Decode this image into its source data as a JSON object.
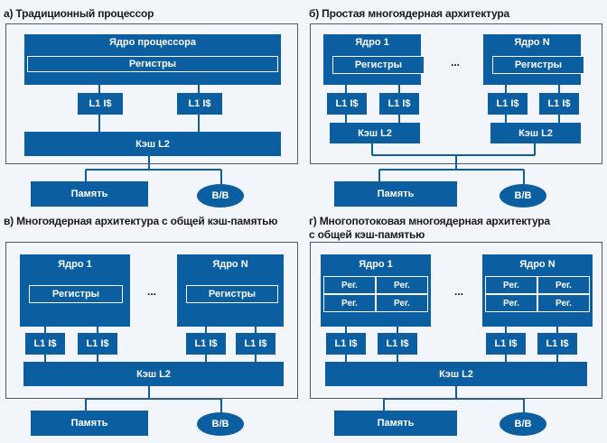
{
  "colors": {
    "block": "#0b5fa0",
    "background": "#f2f6fa",
    "panel": "#e9eef3",
    "wire": "#0b5fa0"
  },
  "a": {
    "title": "а) Традиционный процессор",
    "core_label": "Ядро процессора",
    "registers": "Регистры",
    "l1_left": "L1 I$",
    "l1_right": "L1 I$",
    "cache_l2": "Кэш L2",
    "memory": "Память",
    "io": "В/В"
  },
  "b": {
    "title": "б) Простая многоядерная архитектура",
    "core1_label": "Ядро 1",
    "coreN_label": "Ядро N",
    "registers1": "Регистры",
    "registersN": "Регистры",
    "l1": [
      "L1 I$",
      "L1 I$",
      "L1 I$",
      "L1 I$"
    ],
    "cache1": "Кэш L2",
    "cacheN": "Кэш L2",
    "dots": "...",
    "memory": "Память",
    "io": "В/В"
  },
  "c": {
    "title": "в) Многоядерная архитектура с общей кэш-памятью",
    "core1_label": "Ядро 1",
    "coreN_label": "Ядро N",
    "registers1": "Регистры",
    "registersN": "Регистры",
    "l1": [
      "L1 I$",
      "L1 I$",
      "L1 I$",
      "L1 I$"
    ],
    "cache_l2": "Кэш L2",
    "dots": "...",
    "memory": "Память",
    "io": "В/В"
  },
  "d": {
    "title_line1": "г) Многопотоковая многоядерная архитектура",
    "title_line2": "с общей кэш-памятью",
    "core1_label": "Ядро 1",
    "coreN_label": "Ядро N",
    "reg": "Рег.",
    "l1": [
      "L1 I$",
      "L1 I$",
      "L1 I$",
      "L1 I$"
    ],
    "cache_l2": "Кэш L2",
    "dots": "...",
    "memory": "Память",
    "io": "В/В"
  }
}
